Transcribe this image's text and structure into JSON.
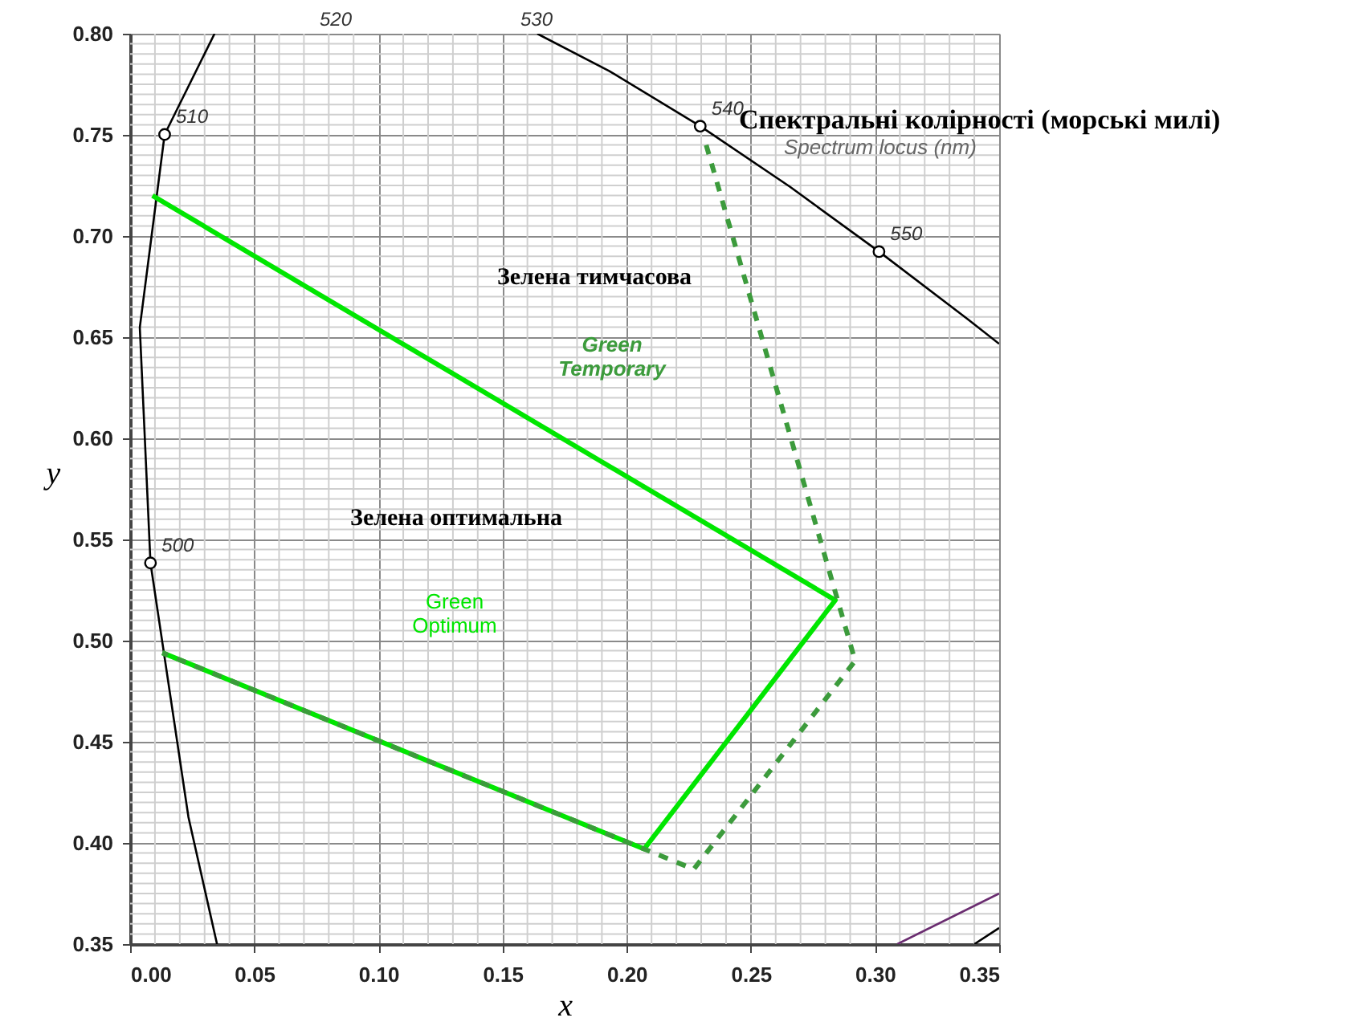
{
  "chart_data": {
    "type": "line",
    "xlabel": "x",
    "ylabel": "y",
    "xlim": [
      0,
      0.35
    ],
    "ylim": [
      0.35,
      0.8
    ],
    "xticks": [
      {
        "value": 0,
        "label": "0.00"
      },
      {
        "value": 0.05,
        "label": "0.05"
      },
      {
        "value": 0.1,
        "label": "0.10"
      },
      {
        "value": 0.15,
        "label": "0.15"
      },
      {
        "value": 0.2,
        "label": "0.20"
      },
      {
        "value": 0.25,
        "label": "0.25"
      },
      {
        "value": 0.3,
        "label": "0.30"
      },
      {
        "value": 0.35,
        "label": "0.35"
      }
    ],
    "yticks": [
      {
        "value": 0.35,
        "label": "0.35"
      },
      {
        "value": 0.4,
        "label": "0.40"
      },
      {
        "value": 0.45,
        "label": "0.45"
      },
      {
        "value": 0.5,
        "label": "0.50"
      },
      {
        "value": 0.55,
        "label": "0.55"
      },
      {
        "value": 0.6,
        "label": "0.60"
      },
      {
        "value": 0.65,
        "label": "0.65"
      },
      {
        "value": 0.7,
        "label": "0.70"
      },
      {
        "value": 0.75,
        "label": "0.75"
      },
      {
        "value": 0.8,
        "label": "0.80"
      }
    ],
    "grid": true,
    "series": [
      {
        "color": "#000000",
        "marker": "none",
        "line_style": "solid",
        "x": [
          0.035,
          0.0235,
          0.0082,
          0.0039,
          0.0139,
          0.034
        ],
        "values": [
          0.35,
          0.4127,
          0.5384,
          0.6548,
          0.7502,
          0.8
        ]
      },
      {
        "color": "#000000",
        "marker": "none",
        "line_style": "solid",
        "x": [
          0.164,
          0.1929,
          0.2296,
          0.2658,
          0.3016,
          0.3373,
          0.35
        ],
        "values": [
          0.8,
          0.7816,
          0.7543,
          0.7243,
          0.6923,
          0.6589,
          0.6467
        ]
      },
      {
        "type": "scatter",
        "color": "#000000",
        "marker": "circle",
        "x": [
          0.0082,
          0.0139,
          0.2296,
          0.3016
        ],
        "values": [
          0.5384,
          0.7502,
          0.7543,
          0.6923
        ]
      },
      {
        "color": "#00e600",
        "marker": "none",
        "line_style": "solid",
        "x": [
          0.013,
          0.207,
          0.284,
          0.009
        ],
        "values": [
          0.494,
          0.397,
          0.52,
          0.72
        ]
      },
      {
        "color": "#3c9b3c",
        "marker": "none",
        "line_style": "dashed",
        "x": [
          0.232,
          0.292,
          0.227,
          0.207,
          0.013
        ],
        "values": [
          0.745,
          0.49,
          0.387,
          0.397,
          0.494
        ]
      },
      {
        "color": "#6a2c70",
        "marker": "none",
        "line_style": "solid",
        "x": [
          0.309,
          0.35
        ],
        "values": [
          0.35,
          0.375
        ]
      },
      {
        "color": "#000000",
        "marker": "none",
        "line_style": "solid",
        "x": [
          0.34,
          0.35
        ],
        "values": [
          0.35,
          0.358
        ]
      }
    ],
    "annotations": [
      "Спектральні колірності (морські милі)",
      "Spectrum locus (nm)",
      "Зелена тимчасова",
      "Green Temporary",
      "Зелена оптимальна",
      "Green Optimum",
      "520",
      "530",
      {
        "text": "500",
        "x": 0.0082,
        "y": 0.5384
      },
      {
        "text": "510",
        "x": 0.0139,
        "y": 0.7502
      },
      {
        "text": "540",
        "x": 0.2296,
        "y": 0.7543
      },
      {
        "text": "550",
        "x": 0.3016,
        "y": 0.6923
      }
    ]
  }
}
